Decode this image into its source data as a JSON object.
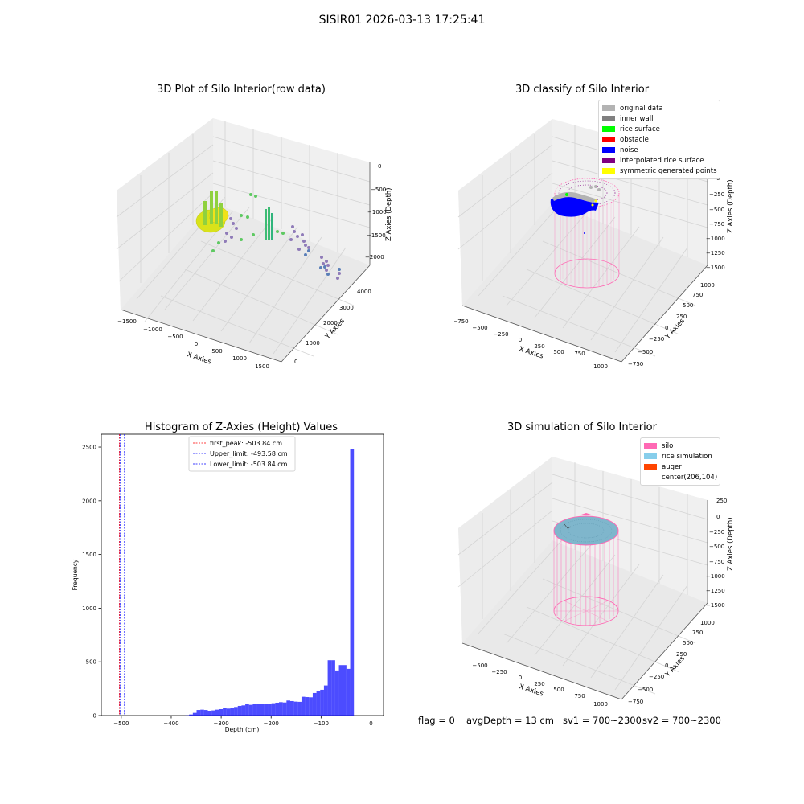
{
  "suptitle": "SISIR01 2026-03-13 17:25:41",
  "chart_data": [
    {
      "type": "scatter",
      "title": "3D Plot of Silo Interior(row data)",
      "xlabel": "X Axies",
      "ylabel": "Y Axies",
      "zlabel": "Z Axies (Depth)",
      "x_ticks": [
        "−1500",
        "−1000",
        "−500",
        "0",
        "500",
        "1000",
        "1500"
      ],
      "y_ticks": [
        "0",
        "1000",
        "2000",
        "3000",
        "4000"
      ],
      "z_ticks": [
        "0",
        "−500",
        "−1000",
        "−1500",
        "−2000"
      ],
      "colormap": "viridis",
      "grid": true
    },
    {
      "type": "scatter",
      "title": "3D classify of Silo Interior",
      "xlabel": "X Axies",
      "ylabel": "Y Axies",
      "zlabel": "Z Axies (Depth)",
      "x_ticks": [
        "−750",
        "−500",
        "−250",
        "0",
        "250",
        "500",
        "750",
        "1000"
      ],
      "y_ticks": [
        "−750",
        "−500",
        "−250",
        "0",
        "250",
        "500",
        "750",
        "1000"
      ],
      "z_ticks": [
        "0",
        "−250",
        "−500",
        "−750",
        "−1000",
        "−1250",
        "−1500"
      ],
      "legend": [
        {
          "label": "original data",
          "color": "#b3b3b3"
        },
        {
          "label": "inner wall",
          "color": "#808080"
        },
        {
          "label": "rice surface",
          "color": "#00ff00"
        },
        {
          "label": "obstacle",
          "color": "#ff0000"
        },
        {
          "label": "noise",
          "color": "#0000ff"
        },
        {
          "label": "interpolated rice surface",
          "color": "#800080"
        },
        {
          "label": "symmetric generated points",
          "color": "#ffff00"
        }
      ],
      "legend_position": "top-right",
      "grid": true
    },
    {
      "type": "bar",
      "title": "Histogram of Z-Axies (Height) Values",
      "xlabel": "Depth (cm)",
      "ylabel": "Frequency",
      "xlim": [
        -540,
        25
      ],
      "ylim": [
        0,
        2620
      ],
      "x_ticks": [
        -500,
        -400,
        -300,
        -200,
        -100,
        0
      ],
      "x_tick_labels": [
        "−500",
        "−400",
        "−300",
        "−200",
        "−100",
        "0"
      ],
      "y_ticks": [
        0,
        500,
        1000,
        1500,
        2000,
        2500
      ],
      "bar_color": "#0000ff",
      "bar_alpha": 0.7,
      "bin_width": 7.5,
      "bins": [
        {
          "x": -368,
          "v": 2
        },
        {
          "x": -360.5,
          "v": 10
        },
        {
          "x": -353,
          "v": 25
        },
        {
          "x": -345.5,
          "v": 52
        },
        {
          "x": -338,
          "v": 55
        },
        {
          "x": -330.5,
          "v": 52
        },
        {
          "x": -323,
          "v": 45
        },
        {
          "x": -315.5,
          "v": 48
        },
        {
          "x": -308,
          "v": 55
        },
        {
          "x": -300.5,
          "v": 60
        },
        {
          "x": -293,
          "v": 70
        },
        {
          "x": -285.5,
          "v": 65
        },
        {
          "x": -278,
          "v": 75
        },
        {
          "x": -270.5,
          "v": 80
        },
        {
          "x": -263,
          "v": 90
        },
        {
          "x": -255.5,
          "v": 95
        },
        {
          "x": -248,
          "v": 105
        },
        {
          "x": -240.5,
          "v": 100
        },
        {
          "x": -233,
          "v": 108
        },
        {
          "x": -225.5,
          "v": 108
        },
        {
          "x": -218,
          "v": 110
        },
        {
          "x": -210.5,
          "v": 112
        },
        {
          "x": -203,
          "v": 110
        },
        {
          "x": -195.5,
          "v": 115
        },
        {
          "x": -188,
          "v": 120
        },
        {
          "x": -180.5,
          "v": 125
        },
        {
          "x": -173,
          "v": 122
        },
        {
          "x": -165.5,
          "v": 140
        },
        {
          "x": -158,
          "v": 135
        },
        {
          "x": -150.5,
          "v": 130
        },
        {
          "x": -143,
          "v": 128
        },
        {
          "x": -135.5,
          "v": 175
        },
        {
          "x": -128,
          "v": 172
        },
        {
          "x": -120.5,
          "v": 170
        },
        {
          "x": -113,
          "v": 210
        },
        {
          "x": -105.5,
          "v": 230
        },
        {
          "x": -98,
          "v": 240
        },
        {
          "x": -90.5,
          "v": 280
        },
        {
          "x": -83,
          "v": 515
        },
        {
          "x": -75.5,
          "v": 515
        },
        {
          "x": -68,
          "v": 420
        },
        {
          "x": -60.5,
          "v": 470
        },
        {
          "x": -53,
          "v": 470
        },
        {
          "x": -45.5,
          "v": 435
        },
        {
          "x": -38,
          "v": 2485
        }
      ],
      "vlines": [
        {
          "label": "first_peak: -503.84 cm",
          "x": -503.84,
          "color": "#ff0000"
        },
        {
          "label": "Upper_limit: -493.58 cm",
          "x": -493.58,
          "color": "#0000ff"
        },
        {
          "label": "Lower_limit: -503.84 cm",
          "x": -503.84,
          "color": "#0000ff"
        }
      ],
      "legend_position": "upper center"
    },
    {
      "type": "scatter",
      "title": "3D simulation of Silo Interior",
      "xlabel": "X Axies",
      "ylabel": "Y Axies",
      "zlabel": "Z Axies (Depth)",
      "x_ticks": [
        "−500",
        "−250",
        "0",
        "250",
        "500",
        "750",
        "1000"
      ],
      "y_ticks": [
        "−750",
        "−500",
        "−250",
        "0",
        "250",
        "500",
        "750",
        "1000"
      ],
      "z_ticks": [
        "250",
        "0",
        "−250",
        "−500",
        "−750",
        "−1000",
        "−1250",
        "−1500"
      ],
      "legend": [
        {
          "label": "silo",
          "color": "#ff69b4"
        },
        {
          "label": "rice simulation",
          "color": "#87ceeb"
        },
        {
          "label": "auger",
          "color": "#ff4500"
        },
        {
          "label": "center(206,104)",
          "color": ""
        }
      ],
      "legend_position": "top-right",
      "grid": true
    }
  ],
  "footer": {
    "flag": "flag = 0",
    "avg": "avgDepth = 13 cm",
    "sv1": "sv1 = 700~2300",
    "sv2": "sv2 = 700~2300"
  }
}
